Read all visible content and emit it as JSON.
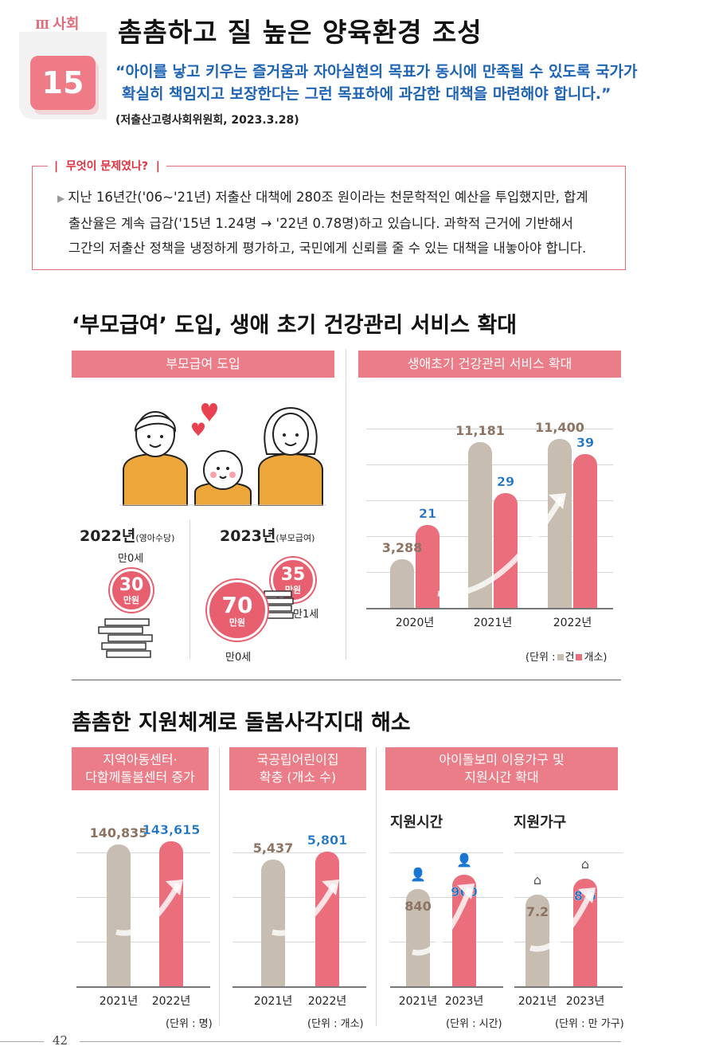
{
  "header": {
    "section_roman": "Ⅲ",
    "section_label": "사회",
    "number": "15",
    "title": "촘촘하고 질 높은 양육환경 조성",
    "quote_line1": "“아이를 낳고 키우는 즐거움과 자아실현의 목표가 동시에 만족될 수 있도록 국가가",
    "quote_line2": "확실히 책임지고 보장한다는 그런 목표하에 과감한 대책을 마련해야 합니다.”",
    "source": "(저출산고령사회위원회, 2023.3.28)"
  },
  "problem": {
    "label": "무엇이 문제였나?",
    "line1": "지난 16년간('06~'21년) 저출산 대책에 280조 원이라는 천문학적인 예산을 투입했지만, 합계",
    "line2": "출산율은 계속 급감('15년 1.24명 → '22년 0.78명)하고 있습니다. 과학적 근거에 기반해서",
    "line3": "그간의 저출산 정책을 냉정하게 평가하고, 국민에게 신뢰를 줄 수 있는 대책을 내놓아야 합니다."
  },
  "section1": {
    "title": "‘부모급여’ 도입, 생애 초기 건강관리 서비스 확대",
    "left_band": "부모급여 도입",
    "right_band": "생애초기 건강관리 서비스 확대",
    "y2022": "2022년",
    "y2022_note": "(영아수당)",
    "y2023": "2023년",
    "y2023_note": "(부모급여)",
    "coin2022_age": "만0세",
    "coin2022_value": "30",
    "coin2022_unit": "만원",
    "coin2023a_value": "70",
    "coin2023a_unit": "만원",
    "coin2023a_age": "만0세",
    "coin2023b_value": "35",
    "coin2023b_unit": "만원",
    "coin2023b_age": "만1세",
    "unit_prefix": "(단위 :",
    "unit_a": "건",
    "unit_b": "개소)"
  },
  "section2": {
    "title": "촘촘한 지원체계로 돌봄사각지대 해소",
    "band1_line1": "지역아동센터·",
    "band1_line2": "다함께돌봄센터 증가",
    "band2_line1": "국공립어린이집",
    "band2_line2": "확충 (개소 수)",
    "band3_line1": "아이돌보미 이용가구 및",
    "band3_line2": "지원시간 확대",
    "sub_hours": "지원시간",
    "sub_households": "지원가구",
    "unit1": "(단위 : 명)",
    "unit2": "(단위 : 개소)",
    "unit3": "(단위 : 시간)",
    "unit4": "(단위 : 만 가구)"
  },
  "footer": {
    "page": "42"
  },
  "colors": {
    "accent_pink": "#ea6e7c",
    "beige": "#c8bdb1",
    "blue_value": "#1e72c4",
    "brown_value": "#8d7462"
  },
  "chart_data": [
    {
      "type": "bar",
      "title": "생애초기 건강관리 서비스 확대",
      "categories": [
        "2020년",
        "2021년",
        "2022년"
      ],
      "series": [
        {
          "name": "건",
          "values": [
            3288,
            11181,
            11400
          ],
          "labels": [
            "3,288",
            "11,181",
            "11,400"
          ]
        },
        {
          "name": "개소",
          "values": [
            21,
            29,
            39
          ],
          "labels": [
            "21",
            "29",
            "39"
          ]
        }
      ]
    },
    {
      "type": "bar",
      "title": "지역아동센터· 다함께돌봄센터 증가",
      "categories": [
        "2021년",
        "2022년"
      ],
      "values": [
        140835,
        143615
      ],
      "labels": [
        "140,835",
        "143,615"
      ]
    },
    {
      "type": "bar",
      "title": "국공립어린이집 확충 (개소 수)",
      "categories": [
        "2021년",
        "2022년"
      ],
      "values": [
        5437,
        5801
      ],
      "labels": [
        "5,437",
        "5,801"
      ]
    },
    {
      "type": "bar",
      "title": "지원시간",
      "categories": [
        "2021년",
        "2023년"
      ],
      "values": [
        840,
        960
      ],
      "labels": [
        "840",
        "960"
      ]
    },
    {
      "type": "bar",
      "title": "지원가구",
      "categories": [
        "2021년",
        "2023년"
      ],
      "values": [
        7.2,
        8.5
      ],
      "labels": [
        "7.2",
        "8.5"
      ]
    }
  ]
}
